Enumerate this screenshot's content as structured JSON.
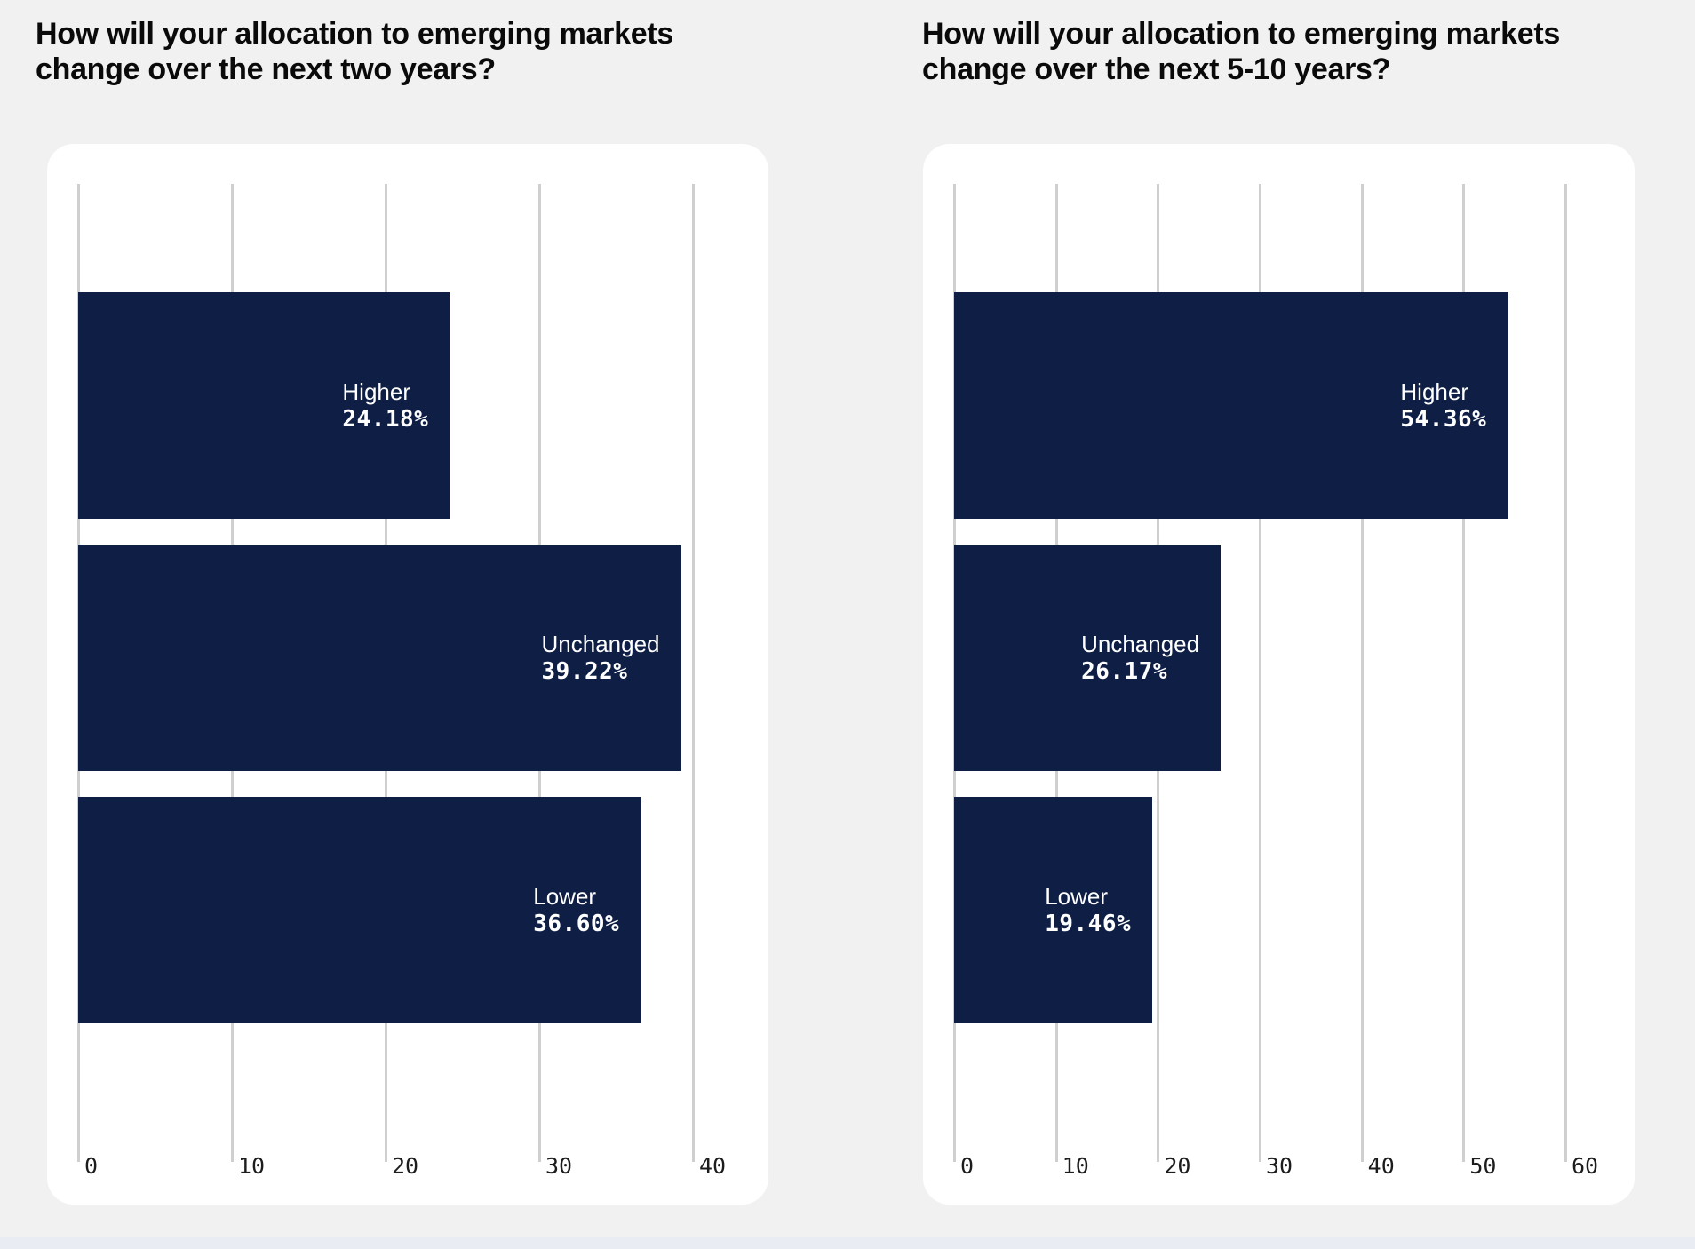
{
  "page": {
    "background_color": "#f1f1f2",
    "card_color": "#ffffff",
    "gridline_color": "#cfcfcf",
    "title_color": "#0a0a0a",
    "axis_label_color": "#1c1c1c"
  },
  "chart_data": [
    {
      "type": "bar",
      "orientation": "horizontal",
      "title": "How will your allocation to emerging markets change over the next two years?",
      "categories": [
        "Higher",
        "Unchanged",
        "Lower"
      ],
      "values": [
        24.18,
        39.22,
        36.6
      ],
      "value_labels": [
        "24.18%",
        "39.22%",
        "36.60%"
      ],
      "xlim": [
        0,
        40
      ],
      "xticks": [
        "0",
        "10",
        "20",
        "30",
        "40"
      ],
      "grid": true,
      "legend": "none",
      "bar_color": "#0e1e44",
      "label_color": "#ffffff",
      "label_position": "inside-end"
    },
    {
      "type": "bar",
      "orientation": "horizontal",
      "title": "How will your allocation to emerging markets change over the next 5-10 years?",
      "categories": [
        "Higher",
        "Unchanged",
        "Lower"
      ],
      "values": [
        54.36,
        26.17,
        19.46
      ],
      "value_labels": [
        "54.36%",
        "26.17%",
        "19.46%"
      ],
      "xlim": [
        0,
        60
      ],
      "xticks": [
        "0",
        "10",
        "20",
        "30",
        "40",
        "50",
        "60"
      ],
      "grid": true,
      "legend": "none",
      "bar_color": "#0e1e44",
      "label_color": "#ffffff",
      "label_position": "inside-end"
    }
  ]
}
